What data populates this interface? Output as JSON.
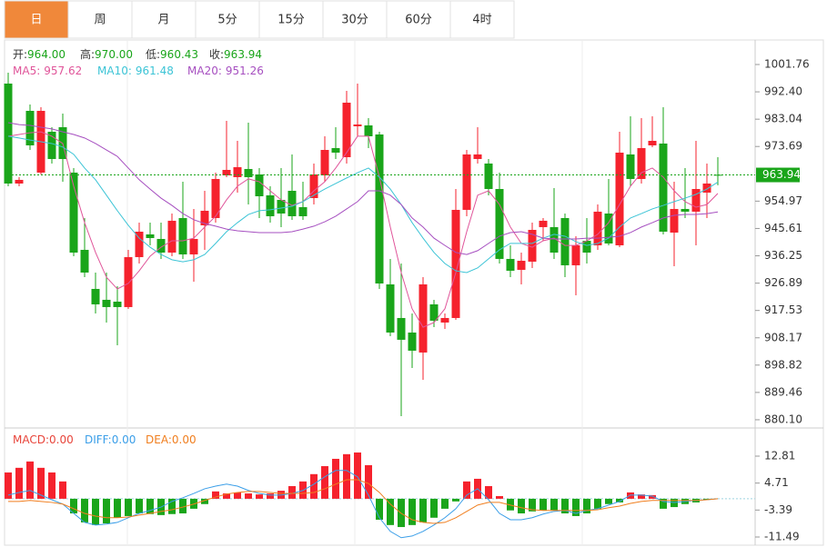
{
  "tabs": [
    "日",
    "周",
    "月",
    "5分",
    "15分",
    "30分",
    "60分",
    "4时"
  ],
  "active_tab": 0,
  "chart_data": [
    {
      "type": "candlestick",
      "ohlc_legend": [
        {
          "label": "开:",
          "value": "964.00"
        },
        {
          "label": "高:",
          "value": "970.00"
        },
        {
          "label": "低:",
          "value": "960.43"
        },
        {
          "label": "收:",
          "value": "963.94"
        }
      ],
      "value_color": "#1aa51a",
      "up_color": "#f5222d",
      "down_color": "#1aa51a",
      "open": [
        995.23,
        961.0,
        985.89,
        964.74,
        978.74,
        980.29,
        964.74,
        938.29,
        924.91,
        921.18,
        920.55,
        918.69,
        935.8,
        943.58,
        942.02,
        937.35,
        949.18,
        936.73,
        946.69,
        949.18,
        963.8,
        963.18,
        965.98,
        964.11,
        956.96,
        955.4,
        958.51,
        952.91,
        956.02,
        963.8,
        973.14,
        970.02,
        980.6,
        980.91,
        977.8,
        926.46,
        914.95,
        909.97,
        903.13,
        919.62,
        913.4,
        914.95,
        951.98,
        969.4,
        967.85,
        959.13,
        935.18,
        931.44,
        934.24,
        946.07,
        946.07,
        949.18,
        933.0,
        941.4,
        939.84,
        950.73,
        939.84,
        970.96,
        962.56,
        974.07,
        974.69,
        944.2,
        952.29,
        951.36,
        957.89,
        964.0
      ],
      "high": [
        998.96,
        963.18,
        988.07,
        987.14,
        980.29,
        984.96,
        966.29,
        949.18,
        930.51,
        930.51,
        925.84,
        938.29,
        947.62,
        947.62,
        947.62,
        950.73,
        961.62,
        952.29,
        958.51,
        964.74,
        982.47,
        975.62,
        981.85,
        966.29,
        960.07,
        966.29,
        970.96,
        961.62,
        967.85,
        977.18,
        980.29,
        992.74,
        995.23,
        983.4,
        978.74,
        935.18,
        933.62,
        916.51,
        928.95,
        921.18,
        916.51,
        959.13,
        972.51,
        980.29,
        969.4,
        964.74,
        939.84,
        937.35,
        947.62,
        949.18,
        959.44,
        950.73,
        942.96,
        949.18,
        953.84,
        962.56,
        978.74,
        984.03,
        983.4,
        984.03,
        987.14,
        961.62,
        966.29,
        975.62,
        967.85,
        970.0
      ],
      "low": [
        960.07,
        960.07,
        972.51,
        964.11,
        967.85,
        961.62,
        936.11,
        928.95,
        916.51,
        913.4,
        905.62,
        918.06,
        933.62,
        939.84,
        935.18,
        936.11,
        935.18,
        927.4,
        938.29,
        947.62,
        963.18,
        957.89,
        953.84,
        949.18,
        947.62,
        946.07,
        948.56,
        948.56,
        953.84,
        961.62,
        969.4,
        967.85,
        977.18,
        973.14,
        924.91,
        908.73,
        881.35,
        897.84,
        893.8,
        911.84,
        911.22,
        914.33,
        949.8,
        967.85,
        956.96,
        933.62,
        928.95,
        926.46,
        932.06,
        941.4,
        935.18,
        928.95,
        922.73,
        933.62,
        938.29,
        939.84,
        939.22,
        960.07,
        961.0,
        973.45,
        943.58,
        932.69,
        949.18,
        939.84,
        949.18,
        960.43
      ],
      "close": [
        961.0,
        962.25,
        974.07,
        985.89,
        969.4,
        969.4,
        937.35,
        930.51,
        919.62,
        918.69,
        918.69,
        935.8,
        944.51,
        942.33,
        937.35,
        948.25,
        936.73,
        942.02,
        951.67,
        962.56,
        965.67,
        966.6,
        963.18,
        956.64,
        949.8,
        950.73,
        949.8,
        949.8,
        964.11,
        972.51,
        971.58,
        988.69,
        981.22,
        977.18,
        926.77,
        909.97,
        907.49,
        903.75,
        926.46,
        914.02,
        914.95,
        951.98,
        970.96,
        970.96,
        959.13,
        935.18,
        931.13,
        934.55,
        945.13,
        948.25,
        937.35,
        933.0,
        939.84,
        937.35,
        951.36,
        940.47,
        971.58,
        962.56,
        973.14,
        975.62,
        944.51,
        952.29,
        951.36,
        959.13,
        961.0,
        963.94
      ],
      "series": [
        {
          "name": "MA5:",
          "value_label": "957.62",
          "color": "#e0559a",
          "values": [
            977.18,
            977.8,
            978.4,
            978.7,
            977.2,
            974.7,
            960.1,
            947.6,
            937.4,
            928.9,
            924.9,
            926.8,
            931.1,
            936.1,
            939.2,
            941.4,
            941.4,
            942.3,
            946.1,
            949.8,
            955.4,
            960.1,
            962.6,
            961.6,
            958.5,
            955.4,
            953.5,
            954.8,
            958.5,
            961.6,
            966.3,
            971.6,
            977.2,
            977.2,
            963.2,
            946.1,
            930.5,
            918.1,
            911.8,
            913.4,
            918.1,
            930.5,
            944.5,
            957.0,
            958.5,
            953.8,
            946.1,
            940.5,
            939.2,
            941.4,
            942.3,
            939.8,
            939.8,
            941.4,
            943.6,
            947.6,
            953.8,
            960.1,
            964.7,
            966.3,
            963.2,
            958.5,
            954.8,
            952.9,
            953.8,
            957.62
          ]
        },
        {
          "name": "MA10:",
          "value_label": "961.48",
          "color": "#3cc4d6",
          "values": [
            977.2,
            976.6,
            975.9,
            975.3,
            974.7,
            973.5,
            971.0,
            966.3,
            962.3,
            957.0,
            951.7,
            946.7,
            942.3,
            939.2,
            936.7,
            934.9,
            934.2,
            934.9,
            936.7,
            940.5,
            944.5,
            947.6,
            950.4,
            951.7,
            952.0,
            952.6,
            953.2,
            954.8,
            957.0,
            959.1,
            961.0,
            962.9,
            964.7,
            966.3,
            963.2,
            959.1,
            953.8,
            947.6,
            942.3,
            937.4,
            933.6,
            931.1,
            930.5,
            932.1,
            935.2,
            938.3,
            940.5,
            940.5,
            940.5,
            942.3,
            943.6,
            942.96,
            941.1,
            939.8,
            940.5,
            942.3,
            946.1,
            949.2,
            950.7,
            952.3,
            953.5,
            954.8,
            956.0,
            957.3,
            959.1,
            961.48
          ]
        },
        {
          "name": "MA20:",
          "value_label": "951.26",
          "color": "#a64fc0",
          "values": [
            981.85,
            981.2,
            980.9,
            980.3,
            979.7,
            978.7,
            977.8,
            976.6,
            974.7,
            972.5,
            970.3,
            966.3,
            962.3,
            959.1,
            956.0,
            953.5,
            950.7,
            948.6,
            947.3,
            946.4,
            945.4,
            944.8,
            944.5,
            944.2,
            944.2,
            944.2,
            944.5,
            945.4,
            946.4,
            947.9,
            949.8,
            952.3,
            954.8,
            958.5,
            958.5,
            957.0,
            953.8,
            949.2,
            946.1,
            942.3,
            939.8,
            937.4,
            936.7,
            938.0,
            940.5,
            942.96,
            944.2,
            944.5,
            943.6,
            942.3,
            942.0,
            942.0,
            942.0,
            942.3,
            942.3,
            942.6,
            942.96,
            944.2,
            946.1,
            947.6,
            949.2,
            950.1,
            950.4,
            950.4,
            950.7,
            951.26
          ]
        }
      ],
      "ylim": [
        877.6,
        1009.85
      ],
      "yticks": [
        1001.76,
        {
          "value": 992.4,
          "label": "992.40"
        },
        983.04,
        973.69,
        954.97,
        945.61,
        936.25,
        926.89,
        917.53,
        908.17,
        898.82,
        889.46,
        {
          "value": 880.1,
          "label": "880.10"
        }
      ]
    },
    {
      "type": "macd",
      "series": [
        {
          "name": "MACD:",
          "value_label": "0.00",
          "color": "#e8443a",
          "style": "bar",
          "up_color": "#f5222d",
          "down_color": "#1aa51a",
          "values": [
            7.9,
            9.3,
            11.2,
            9.3,
            7.9,
            5.2,
            -4.4,
            -7.1,
            -7.9,
            -7.4,
            -5.7,
            -5.2,
            -4.4,
            -4.6,
            -4.9,
            -4.6,
            -4.4,
            -3.0,
            -1.6,
            2.2,
            1.6,
            1.9,
            1.6,
            1.3,
            1.6,
            2.4,
            3.8,
            5.2,
            7.4,
            9.8,
            12.0,
            13.4,
            13.9,
            10.1,
            -6.3,
            -7.9,
            -8.5,
            -7.9,
            -7.1,
            -5.7,
            -3.0,
            -0.8,
            5.2,
            6.0,
            3.8,
            0.8,
            -3.5,
            -4.4,
            -3.8,
            -3.5,
            -3.5,
            -4.4,
            -5.2,
            -4.4,
            -3.0,
            -1.6,
            -1.1,
            1.9,
            1.3,
            1.1,
            -3.0,
            -2.5,
            -1.6,
            -1.1,
            -0.3,
            0
          ]
        },
        {
          "name": "DIFF:",
          "value_label": "0.00",
          "color": "#3a9ee8",
          "style": "line",
          "values": [
            1.1,
            1.9,
            2.5,
            1.1,
            -0.3,
            -1.6,
            -4.4,
            -7.1,
            -7.9,
            -7.6,
            -7.1,
            -5.7,
            -4.4,
            -3.5,
            -2.5,
            -0.8,
            0.3,
            1.6,
            3.0,
            3.8,
            4.4,
            3.8,
            2.5,
            1.6,
            1.1,
            1.1,
            1.6,
            2.5,
            4.4,
            6.6,
            8.5,
            8.5,
            6.6,
            1.1,
            -5.7,
            -9.8,
            -11.7,
            -11.2,
            -9.8,
            -7.9,
            -5.7,
            -3.0,
            1.1,
            3.0,
            -0.3,
            -4.4,
            -6.3,
            -6.3,
            -5.7,
            -4.6,
            -3.8,
            -3.5,
            -4.4,
            -3.5,
            -3.0,
            -1.9,
            -0.8,
            1.1,
            1.1,
            0.8,
            -0.8,
            -1.1,
            -0.8,
            -0.5,
            -0.3,
            0
          ]
        },
        {
          "name": "DEA:",
          "value_label": "0.00",
          "color": "#f07e1e",
          "style": "line",
          "values": [
            -0.8,
            -0.8,
            -0.5,
            -0.8,
            -1.1,
            -1.6,
            -3.0,
            -4.4,
            -5.2,
            -5.7,
            -5.7,
            -5.5,
            -4.9,
            -4.4,
            -3.8,
            -3.3,
            -2.5,
            -1.6,
            -0.5,
            0.5,
            1.4,
            1.9,
            2.2,
            2.2,
            1.9,
            1.6,
            1.6,
            1.6,
            1.9,
            3.0,
            4.4,
            5.7,
            5.7,
            4.6,
            1.9,
            -1.6,
            -4.4,
            -6.3,
            -7.1,
            -7.4,
            -7.1,
            -5.7,
            -3.8,
            -1.9,
            -1.1,
            -1.1,
            -1.9,
            -2.7,
            -3.3,
            -3.5,
            -3.5,
            -3.5,
            -3.5,
            -3.5,
            -3.3,
            -2.7,
            -2.2,
            -1.4,
            -0.8,
            -0.5,
            -0.5,
            -0.5,
            -0.5,
            -0.5,
            -0.3,
            0
          ]
        }
      ],
      "ylim": [
        -13.95,
        20.18
      ],
      "yticks": [
        12.81,
        4.71,
        -3.39,
        -11.49
      ]
    }
  ]
}
